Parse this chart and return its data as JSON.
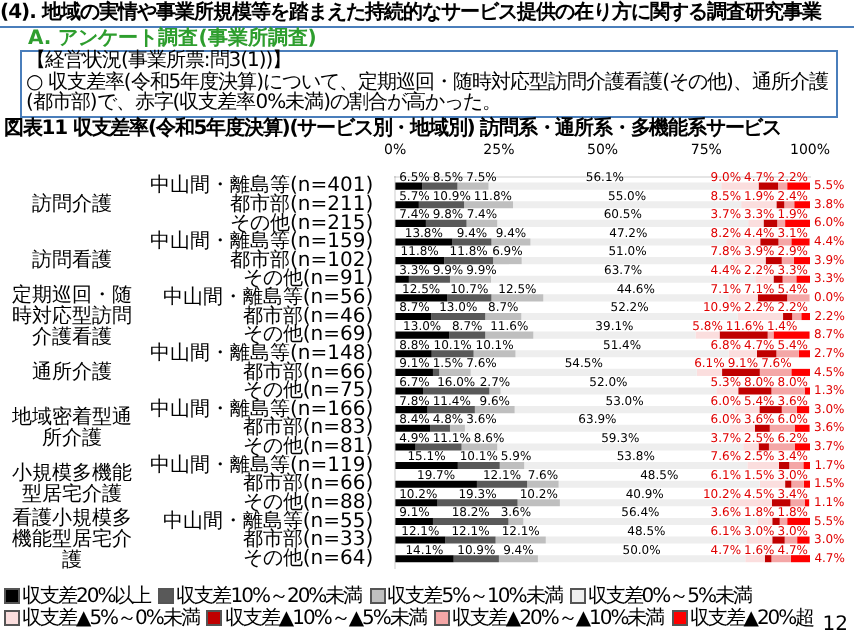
{
  "chart_data": {
    "type": "bar",
    "orientation": "horizontal",
    "stacked": true,
    "title": "(4). 地域の実情や事業所規模等を踏まえた持続的なサービス提供の在り方に関する調査研究事業",
    "subtitle": "図表11 収支差率(令和5年度決算)(サービス別・地域別) 訪問系・通所系・多機能系サービス",
    "categories": [
      "中山間・離島等(n=401)",
      "都市部(n=211)",
      "その他(n=215)",
      "中山間・離島等(n=159)",
      "都市部(n=102)",
      "その他(n=91)",
      "中山間・離島等(n=56)",
      "都市部(n=46)",
      "その他(n=69)",
      "中山間・離島等(n=148)",
      "都市部(n=66)",
      "その他(n=75)",
      "中山間・離島等(n=166)",
      "都市部(n=83)",
      "その他(n=81)",
      "中山間・離島等(n=119)",
      "都市部(n=66)",
      "その他(n=88)",
      "中山間・離島等(n=55)",
      "都市部(n=33)",
      "その他(n=64)"
    ],
    "series": [
      {
        "name": "収支差20%以上",
        "color": "#000000",
        "values": [
          6.5,
          5.7,
          7.4,
          13.8,
          11.8,
          3.3,
          12.5,
          8.7,
          13.0,
          8.8,
          9.1,
          6.7,
          7.8,
          8.4,
          4.9,
          15.1,
          19.7,
          10.2,
          9.1,
          12.1,
          14.1
        ],
        "value_labels": [
          "6.5%",
          "5.7%",
          "7.4%",
          "13.8%",
          "11.8%",
          "3.3%",
          "12.5%",
          "8.7%",
          "13.0%",
          "8.8%",
          "9.1%",
          "6.7%",
          "7.8%",
          "8.4%",
          "4.9%",
          "15.1%",
          "19.7%",
          "10.2%",
          "9.1%",
          "12.1%",
          "14.1%"
        ]
      },
      {
        "name": "収支差10%～20%未満",
        "color": "#595959",
        "values": [
          8.5,
          10.9,
          9.8,
          9.4,
          11.8,
          9.9,
          10.7,
          13.0,
          8.7,
          10.1,
          1.5,
          16.0,
          11.4,
          4.8,
          11.1,
          10.1,
          12.1,
          19.3,
          18.2,
          12.1,
          10.9
        ],
        "value_labels": [
          "8.5%",
          "10.9%",
          "9.8%",
          "9.4%",
          "11.8%",
          "9.9%",
          "10.7%",
          "13.0%",
          "8.7%",
          "10.1%",
          "1.5%",
          "16.0%",
          "11.4%",
          "4.8%",
          "11.1%",
          "10.1%",
          "12.1%",
          "19.3%",
          "18.2%",
          "12.1%",
          "10.9%"
        ]
      },
      {
        "name": "収支差5%～10%未満",
        "color": "#bfbfbf",
        "values": [
          7.5,
          11.8,
          7.4,
          9.4,
          6.9,
          9.9,
          12.5,
          8.7,
          11.6,
          10.1,
          7.6,
          2.7,
          9.6,
          3.6,
          8.6,
          5.9,
          7.6,
          10.2,
          3.6,
          12.1,
          9.4
        ],
        "value_labels": [
          "7.5%",
          "11.8%",
          "7.4%",
          "9.4%",
          "6.9%",
          "9.9%",
          "12.5%",
          "8.7%",
          "11.6%",
          "10.1%",
          "7.6%",
          "2.7%",
          "9.6%",
          "3.6%",
          "8.6%",
          "5.9%",
          "7.6%",
          "10.2%",
          "3.6%",
          "12.1%",
          "9.4%"
        ]
      },
      {
        "name": "収支差0%～5%未満",
        "color": "#eeeeee",
        "values": [
          56.1,
          55.0,
          60.5,
          47.2,
          51.0,
          63.7,
          44.6,
          52.2,
          39.1,
          51.4,
          54.5,
          52.0,
          53.0,
          63.9,
          59.3,
          53.8,
          48.5,
          40.9,
          56.4,
          48.5,
          50.0
        ],
        "value_labels": [
          "56.1%",
          "55.0%",
          "60.5%",
          "47.2%",
          "51.0%",
          "63.7%",
          "44.6%",
          "52.2%",
          "39.1%",
          "51.4%",
          "54.5%",
          "52.0%",
          "53.0%",
          "63.9%",
          "59.3%",
          "53.8%",
          "48.5%",
          "40.9%",
          "56.4%",
          "48.5%",
          "50.0%"
        ]
      },
      {
        "name": "収支差▲5%～0%未満",
        "color": "#fbdede",
        "values": [
          9.0,
          8.5,
          3.7,
          8.2,
          7.8,
          4.4,
          7.1,
          10.9,
          5.8,
          6.8,
          6.1,
          5.3,
          6.0,
          6.0,
          3.7,
          7.6,
          6.1,
          10.2,
          3.6,
          6.1,
          4.7
        ],
        "value_labels": [
          "9.0%",
          "8.5%",
          "3.7%",
          "8.2%",
          "7.8%",
          "4.4%",
          "7.1%",
          "10.9%",
          "5.8%",
          "6.8%",
          "6.1%",
          "5.3%",
          "6.0%",
          "6.0%",
          "3.7%",
          "7.6%",
          "6.1%",
          "10.2%",
          "3.6%",
          "6.1%",
          "4.7%"
        ]
      },
      {
        "name": "収支差▲10%～▲5%未満",
        "color": "#c00000",
        "values": [
          4.7,
          1.9,
          3.3,
          4.4,
          3.9,
          2.2,
          7.1,
          2.2,
          11.6,
          4.7,
          9.1,
          8.0,
          5.4,
          3.6,
          2.5,
          2.5,
          1.5,
          4.5,
          1.8,
          3.0,
          1.6
        ],
        "value_labels": [
          "4.7%",
          "1.9%",
          "3.3%",
          "4.4%",
          "3.9%",
          "2.2%",
          "7.1%",
          "2.2%",
          "11.6%",
          "4.7%",
          "9.1%",
          "8.0%",
          "5.4%",
          "3.6%",
          "2.5%",
          "2.5%",
          "1.5%",
          "4.5%",
          "1.8%",
          "3.0%",
          "1.6%"
        ]
      },
      {
        "name": "収支差▲20%～▲10%未満",
        "color": "#f4a6a6",
        "values": [
          2.2,
          2.4,
          1.9,
          3.1,
          2.9,
          3.3,
          5.4,
          2.2,
          1.4,
          5.4,
          7.6,
          8.0,
          3.6,
          6.0,
          6.2,
          3.4,
          3.0,
          3.4,
          1.8,
          3.0,
          4.7
        ],
        "value_labels": [
          "2.2%",
          "2.4%",
          "1.9%",
          "3.1%",
          "2.9%",
          "3.3%",
          "5.4%",
          "2.2%",
          "1.4%",
          "5.4%",
          "7.6%",
          "8.0%",
          "3.6%",
          "6.0%",
          "6.2%",
          "3.4%",
          "3.0%",
          "3.4%",
          "1.8%",
          "3.0%",
          "4.7%"
        ]
      },
      {
        "name": "収支差▲20%超",
        "color": "#ff0000",
        "values": [
          5.5,
          3.8,
          6.0,
          4.4,
          3.9,
          3.3,
          0.0,
          2.2,
          8.7,
          2.7,
          4.5,
          1.3,
          3.0,
          3.6,
          3.7,
          1.7,
          1.5,
          1.1,
          5.5,
          3.0,
          4.7
        ],
        "value_labels": [
          "5.5%",
          "3.8%",
          "6.0%",
          "4.4%",
          "3.9%",
          "3.3%",
          "0.0%",
          "2.2%",
          "8.7%",
          "2.7%",
          "4.5%",
          "1.3%",
          "3.0%",
          "3.6%",
          "3.7%",
          "1.7%",
          "1.5%",
          "1.1%",
          "5.5%",
          "3.0%",
          "4.7%"
        ]
      }
    ],
    "xlim": [
      0,
      100
    ],
    "xticks": [
      {
        "value": 0,
        "label": "0%"
      },
      {
        "value": 25,
        "label": "25%"
      },
      {
        "value": 50,
        "label": "50%"
      },
      {
        "value": 75,
        "label": "75%"
      },
      {
        "value": 100,
        "label": "100%"
      }
    ],
    "legend": "bottom",
    "annotations": [
      "A. アンケート調査(事業所調査)",
      "【経営状況(事業所票:問3(1))】",
      "○ 収支差率(令和5年度決算)について、定期巡回・随時対応型訪問介護看護(その他)、通所介護(都市部)で、赤字(収支差率0%未満)の割合が高かった。",
      "12",
      "訪問介護",
      "訪問看護",
      "定期巡回・随時対応型訪問介護看護",
      "通所介護",
      "地域密着型通所介護",
      "小規模多機能型居宅介護",
      "看護小規模多機能型居宅介護"
    ]
  }
}
